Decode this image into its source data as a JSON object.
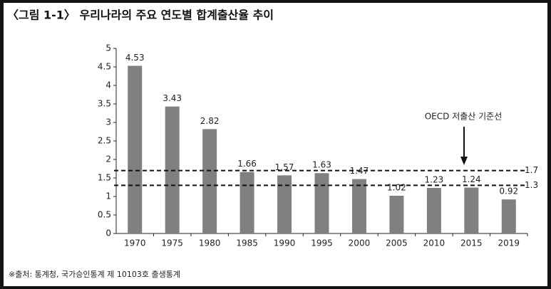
{
  "chart_data": {
    "type": "bar",
    "title": "〈그림 1-1〉 우리나라의 주요 연도별 합계출산율 추이",
    "categories": [
      "1970",
      "1975",
      "1980",
      "1985",
      "1990",
      "1995",
      "2000",
      "2005",
      "2010",
      "2015",
      "2019"
    ],
    "values": [
      4.53,
      3.43,
      2.82,
      1.66,
      1.57,
      1.63,
      1.47,
      1.02,
      1.23,
      1.24,
      0.92
    ],
    "color": "#808080",
    "ylim": [
      0,
      5
    ],
    "yticks": [
      0,
      0.5,
      1,
      1.5,
      2,
      2.5,
      3,
      3.5,
      4,
      4.5,
      5
    ],
    "reference_lines": [
      {
        "value": 1.7
      },
      {
        "value": 1.3
      }
    ],
    "annotation": "OECD 저출산 기준선",
    "source": "※출처: 통계청, 국가승인통계 제 10103호 출생통계"
  }
}
